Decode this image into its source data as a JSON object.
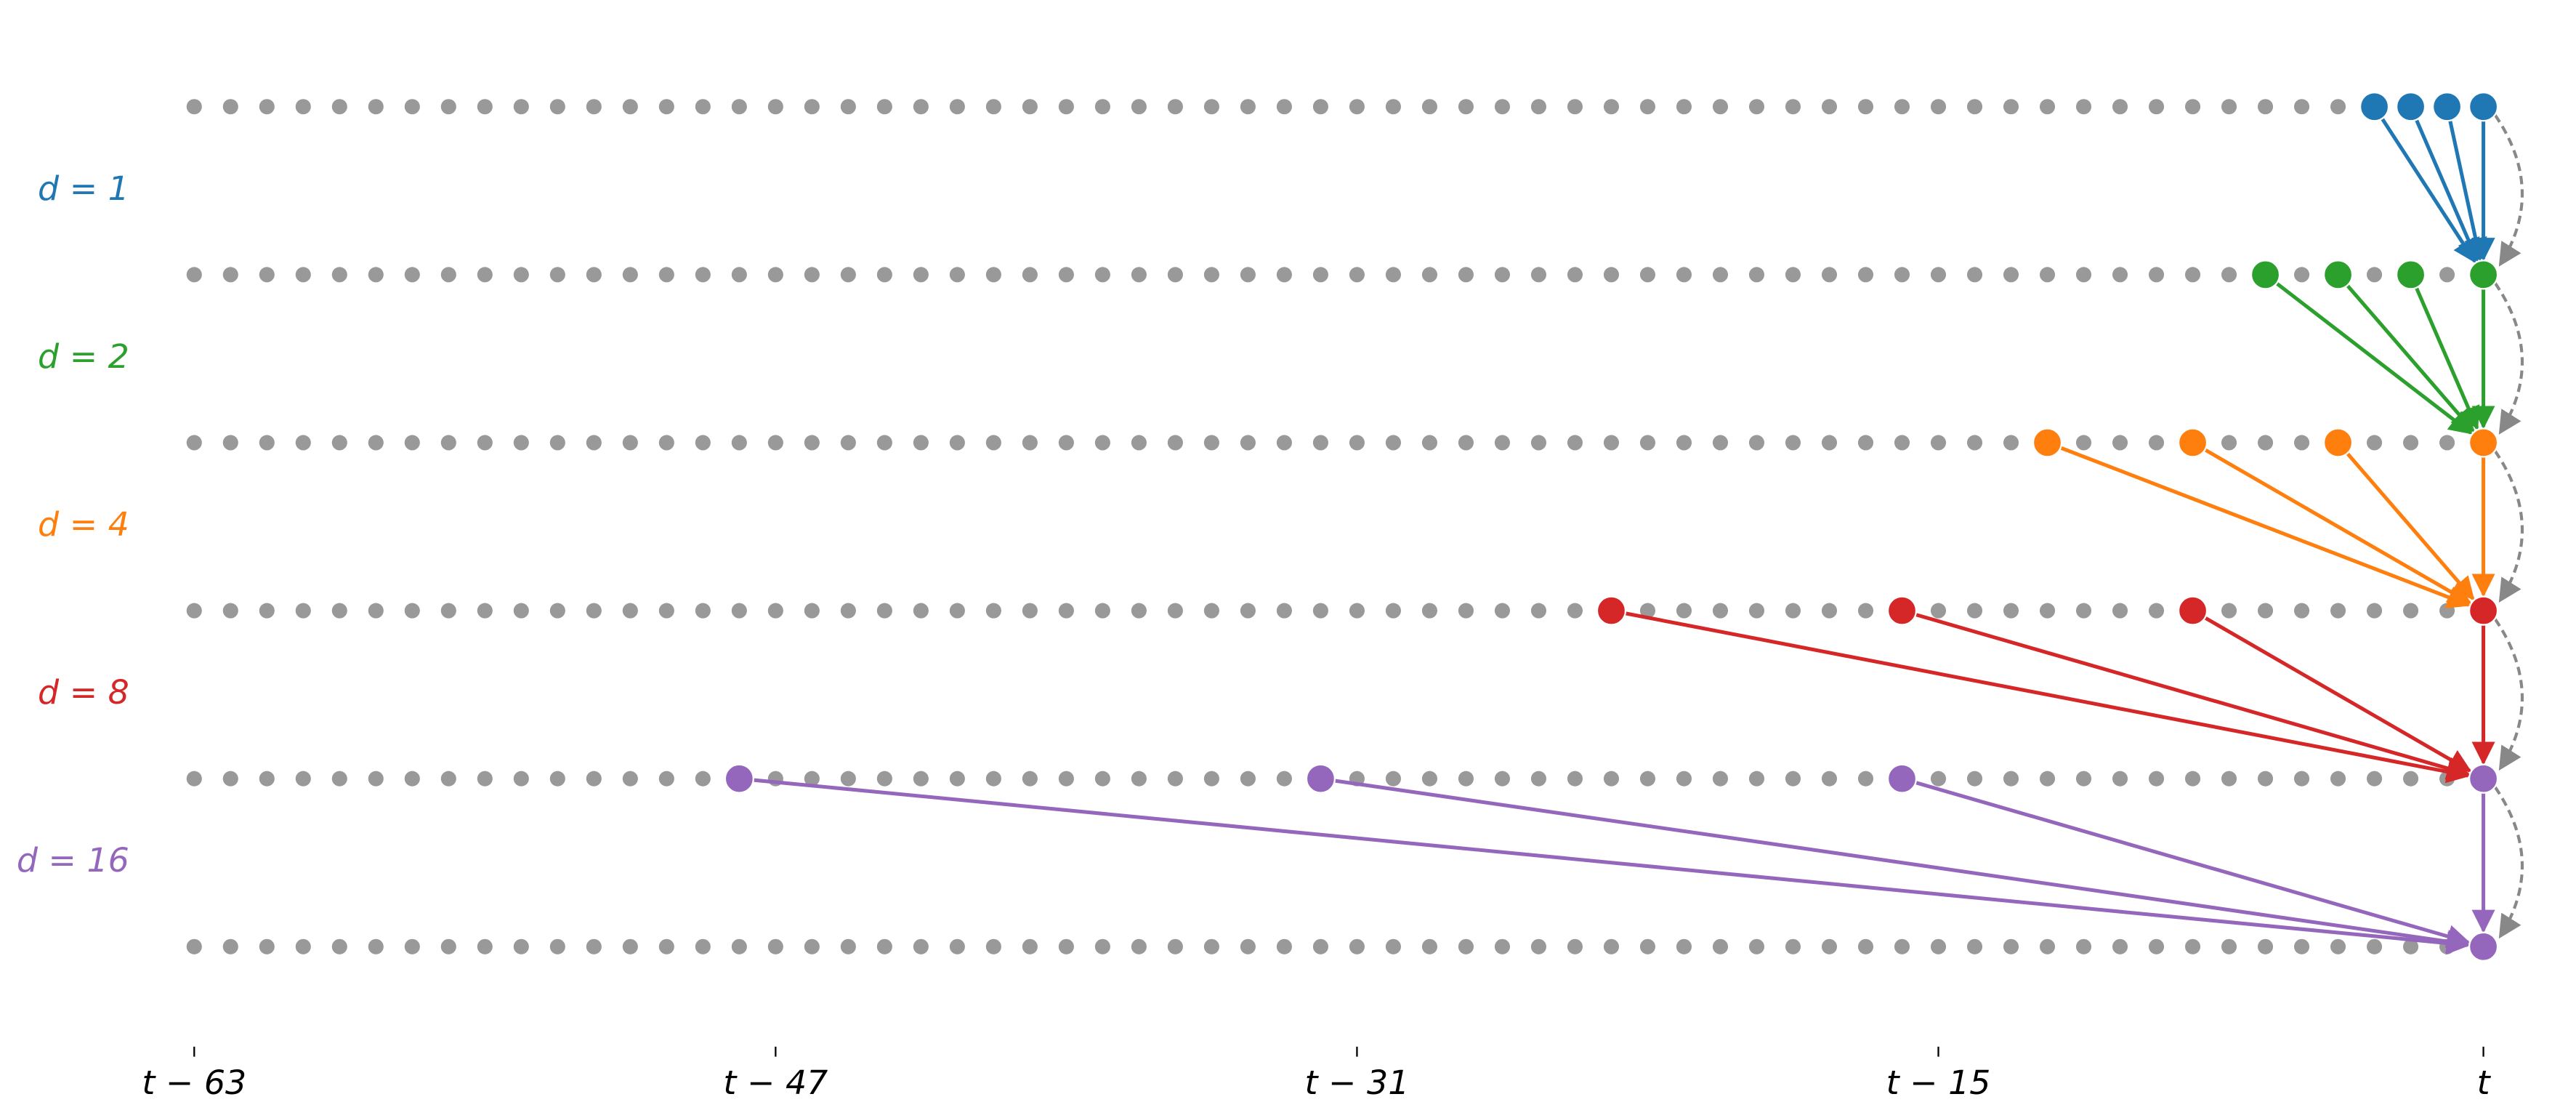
{
  "layers": [
    {
      "label": "d = 1",
      "dilation": 1,
      "color": "#1f77b4"
    },
    {
      "label": "d = 2",
      "dilation": 2,
      "color": "#2ca02c"
    },
    {
      "label": "d = 4",
      "dilation": 4,
      "color": "#ff7f0e"
    },
    {
      "label": "d = 8",
      "dilation": 8,
      "color": "#d62728"
    },
    {
      "label": "d = 16",
      "dilation": 16,
      "color": "#9467bd"
    }
  ],
  "x_axis": {
    "ticks": [
      {
        "value": -63,
        "label": "t − 63"
      },
      {
        "value": -47,
        "label": "t − 47"
      },
      {
        "value": -31,
        "label": "t − 31"
      },
      {
        "value": -15,
        "label": "t − 15"
      },
      {
        "value": 0,
        "label": "t"
      }
    ]
  },
  "node_color": "#999999"
}
